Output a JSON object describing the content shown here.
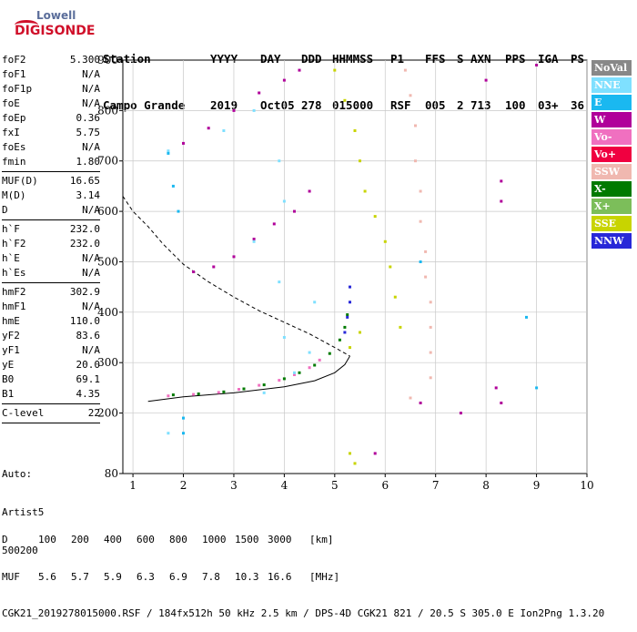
{
  "logo": {
    "line1": "Lowell",
    "line2": "DIGISONDE"
  },
  "header": {
    "row1": [
      "Station",
      "YYYY",
      "DAY",
      "DDD",
      "HHMMSS",
      "P1",
      "FFS",
      "S",
      "AXN",
      "PPS",
      "IGA",
      "PS"
    ],
    "row2": [
      "Campo Grande",
      "2019",
      "Oct05",
      "278",
      "015000",
      "RSF",
      "005",
      "2",
      "713",
      "100",
      "03+",
      "36"
    ]
  },
  "params": [
    {
      "name": "foF2",
      "value": "5.300"
    },
    {
      "name": "foF1",
      "value": "N/A"
    },
    {
      "name": "foF1p",
      "value": "N/A"
    },
    {
      "name": "foE",
      "value": "N/A"
    },
    {
      "name": "foEp",
      "value": "0.36"
    },
    {
      "name": "fxI",
      "value": "5.75"
    },
    {
      "name": "foEs",
      "value": "N/A"
    },
    {
      "name": "fmin",
      "value": "1.80"
    },
    {
      "name": "MUF(D)",
      "value": "16.65"
    },
    {
      "name": "M(D)",
      "value": "3.14"
    },
    {
      "name": "D",
      "value": "N/A"
    },
    {
      "name": "h`F",
      "value": "232.0"
    },
    {
      "name": "h`F2",
      "value": "232.0"
    },
    {
      "name": "h`E",
      "value": "N/A"
    },
    {
      "name": "h`Es",
      "value": "N/A"
    },
    {
      "name": "hmF2",
      "value": "302.9"
    },
    {
      "name": "hmF1",
      "value": "N/A"
    },
    {
      "name": "hmE",
      "value": "110.0"
    },
    {
      "name": "yF2",
      "value": "83.6"
    },
    {
      "name": "yF1",
      "value": "N/A"
    },
    {
      "name": "yE",
      "value": "20.0"
    },
    {
      "name": "B0",
      "value": "69.1"
    },
    {
      "name": "B1",
      "value": "4.35"
    },
    {
      "name": "C-level",
      "value": "22"
    }
  ],
  "auto": {
    "line1": "Auto:",
    "line2": "Artist5",
    "line3": "500200"
  },
  "legend": [
    {
      "label": "NoVal",
      "color": "#888888"
    },
    {
      "label": "NNE",
      "color": "#7fe0ff"
    },
    {
      "label": "E",
      "color": "#1ab8f0"
    },
    {
      "label": "W",
      "color": "#b0009a"
    },
    {
      "label": "Vo-",
      "color": "#f070c0"
    },
    {
      "label": "Vo+",
      "color": "#f00040"
    },
    {
      "label": "SSW",
      "color": "#f0b8b0"
    },
    {
      "label": "X-",
      "color": "#007a00"
    },
    {
      "label": "X+",
      "color": "#7cbe5a"
    },
    {
      "label": "SSE",
      "color": "#c8d400"
    },
    {
      "label": "NNW",
      "color": "#2828d8"
    }
  ],
  "footer": {
    "d_row": [
      "D",
      "100",
      "200",
      "400",
      "600",
      "800",
      "1000",
      "1500",
      "3000",
      "[km]"
    ],
    "muf_row": [
      "MUF",
      "5.6",
      "5.7",
      "5.9",
      "6.3",
      "6.9",
      "7.8",
      "10.3",
      "16.6",
      "[MHz]"
    ],
    "file_line": "CGK21_2019278015000.RSF / 184fx512h 50 kHz 2.5 km / DPS-4D CGK21 821 / 20.5 S 305.0 E Ion2Png 1.3.20"
  },
  "chart_data": {
    "type": "scatter",
    "xlim": [
      0.8,
      10
    ],
    "ylim": [
      80,
      900
    ],
    "x_ticks": [
      1,
      2,
      3,
      4,
      5,
      6,
      7,
      8,
      9,
      10
    ],
    "y_ticks": [
      80,
      200,
      300,
      400,
      500,
      600,
      700,
      800,
      900
    ],
    "grid": true,
    "traces": [
      {
        "name": "X-",
        "color": "#007a00",
        "points": [
          [
            1.8,
            236
          ],
          [
            2.3,
            238
          ],
          [
            2.8,
            242
          ],
          [
            3.2,
            248
          ],
          [
            3.6,
            256
          ],
          [
            4.0,
            268
          ],
          [
            4.3,
            280
          ],
          [
            4.6,
            295
          ],
          [
            4.9,
            318
          ],
          [
            5.1,
            345
          ],
          [
            5.2,
            370
          ],
          [
            5.25,
            395
          ]
        ]
      },
      {
        "name": "Vo-",
        "color": "#f070c0",
        "points": [
          [
            1.7,
            234
          ],
          [
            2.2,
            237
          ],
          [
            2.7,
            241
          ],
          [
            3.1,
            247
          ],
          [
            3.5,
            255
          ],
          [
            3.9,
            265
          ],
          [
            4.2,
            276
          ],
          [
            4.5,
            290
          ],
          [
            4.7,
            305
          ]
        ]
      },
      {
        "name": "NNW",
        "color": "#2828d8",
        "points": [
          [
            5.2,
            360
          ],
          [
            5.25,
            390
          ],
          [
            5.3,
            420
          ],
          [
            5.3,
            450
          ]
        ]
      },
      {
        "name": "W",
        "color": "#b0009a",
        "points": [
          [
            2.0,
            735
          ],
          [
            2.5,
            765
          ],
          [
            3.0,
            800
          ],
          [
            3.5,
            835
          ],
          [
            4.0,
            860
          ],
          [
            4.3,
            880
          ],
          [
            2.2,
            480
          ],
          [
            2.6,
            490
          ],
          [
            3.0,
            510
          ],
          [
            3.4,
            545
          ],
          [
            3.8,
            575
          ],
          [
            4.2,
            600
          ],
          [
            4.5,
            640
          ],
          [
            8.3,
            620
          ],
          [
            8.3,
            660
          ],
          [
            8.2,
            250
          ],
          [
            8.3,
            220
          ],
          [
            7.5,
            200
          ],
          [
            6.7,
            220
          ],
          [
            5.8,
            120
          ],
          [
            8.0,
            860
          ],
          [
            9.0,
            890
          ]
        ]
      },
      {
        "name": "SSE",
        "color": "#c8d400",
        "points": [
          [
            5.0,
            880
          ],
          [
            5.2,
            820
          ],
          [
            5.4,
            760
          ],
          [
            5.5,
            700
          ],
          [
            5.6,
            640
          ],
          [
            5.8,
            590
          ],
          [
            6.0,
            540
          ],
          [
            6.1,
            490
          ],
          [
            6.2,
            430
          ],
          [
            6.3,
            370
          ],
          [
            5.3,
            330
          ],
          [
            5.5,
            360
          ],
          [
            5.3,
            120
          ],
          [
            5.4,
            100
          ]
        ]
      },
      {
        "name": "SSW",
        "color": "#f0b8b0",
        "points": [
          [
            6.4,
            880
          ],
          [
            6.5,
            830
          ],
          [
            6.6,
            770
          ],
          [
            6.6,
            700
          ],
          [
            6.7,
            640
          ],
          [
            6.7,
            580
          ],
          [
            6.8,
            520
          ],
          [
            6.8,
            470
          ],
          [
            6.9,
            420
          ],
          [
            6.9,
            370
          ],
          [
            6.9,
            320
          ],
          [
            6.9,
            270
          ],
          [
            6.5,
            230
          ]
        ]
      },
      {
        "name": "NNE",
        "color": "#7fe0ff",
        "points": [
          [
            1.7,
            720
          ],
          [
            2.8,
            760
          ],
          [
            3.4,
            800
          ],
          [
            3.9,
            700
          ],
          [
            4.0,
            620
          ],
          [
            3.4,
            540
          ],
          [
            3.9,
            460
          ],
          [
            4.6,
            420
          ],
          [
            4.5,
            320
          ],
          [
            4.2,
            280
          ],
          [
            1.7,
            160
          ],
          [
            2.0,
            190
          ],
          [
            3.6,
            240
          ],
          [
            4.0,
            350
          ]
        ]
      },
      {
        "name": "E",
        "color": "#1ab8f0",
        "points": [
          [
            1.7,
            715
          ],
          [
            1.8,
            650
          ],
          [
            1.9,
            600
          ],
          [
            2.0,
            190
          ],
          [
            2.0,
            160
          ],
          [
            8.8,
            390
          ],
          [
            9.0,
            250
          ],
          [
            6.7,
            500
          ]
        ]
      }
    ],
    "model_curves": [
      {
        "style": "solid",
        "color": "#000000",
        "points": [
          [
            1.3,
            223
          ],
          [
            2.0,
            232
          ],
          [
            3.0,
            240
          ],
          [
            4.0,
            252
          ],
          [
            4.6,
            264
          ],
          [
            5.0,
            280
          ],
          [
            5.2,
            296
          ],
          [
            5.3,
            313
          ]
        ]
      },
      {
        "style": "dashed",
        "color": "#000000",
        "points": [
          [
            0.8,
            630
          ],
          [
            1.0,
            600
          ],
          [
            1.3,
            570
          ],
          [
            1.6,
            535
          ],
          [
            2.0,
            495
          ],
          [
            2.5,
            460
          ],
          [
            3.0,
            430
          ],
          [
            3.5,
            403
          ],
          [
            4.0,
            380
          ],
          [
            4.5,
            357
          ],
          [
            5.0,
            330
          ],
          [
            5.3,
            313
          ]
        ]
      }
    ]
  }
}
